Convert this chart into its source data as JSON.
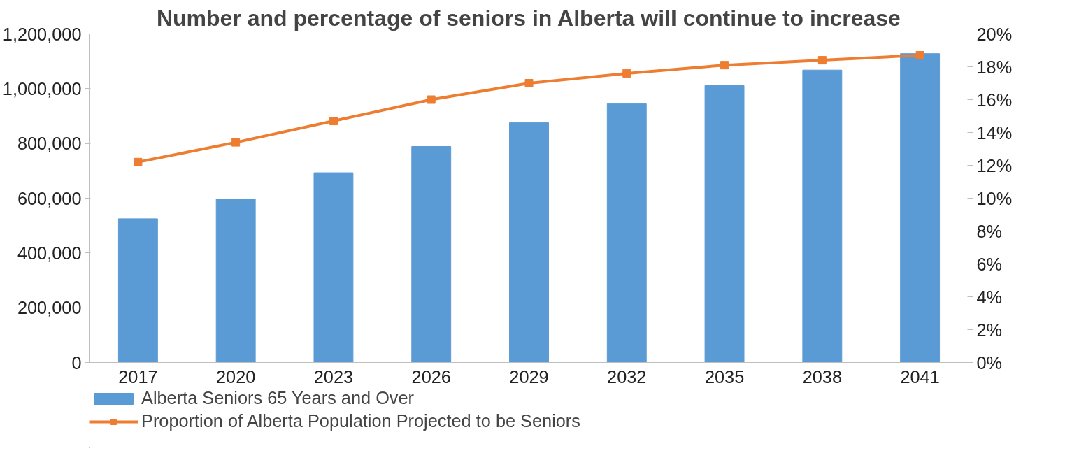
{
  "chart_data": {
    "type": "bar",
    "title": "Number and percentage of seniors in Alberta will continue to increase",
    "categories": [
      "2017",
      "2020",
      "2023",
      "2026",
      "2029",
      "2032",
      "2035",
      "2038",
      "2041"
    ],
    "series": [
      {
        "name": "Alberta Seniors 65 Years and Over",
        "color": "#5b9bd5",
        "values": [
          525000,
          597000,
          693000,
          789000,
          876000,
          945000,
          1011000,
          1068000,
          1128000
        ]
      },
      {
        "name": "Proportion of Alberta Population Projected to be Seniors",
        "type": "line",
        "axis": "y2",
        "color": "#ed7d31",
        "marker": "square",
        "values": [
          12.2,
          13.4,
          14.7,
          16.0,
          17.0,
          17.6,
          18.1,
          18.4,
          18.7
        ]
      }
    ],
    "ylim": [
      0,
      1200000
    ],
    "yticks": [
      {
        "value": 0,
        "label": "0"
      },
      {
        "value": 200000,
        "label": "200,000"
      },
      {
        "value": 400000,
        "label": "400,000"
      },
      {
        "value": 600000,
        "label": "600,000"
      },
      {
        "value": 800000,
        "label": "800,000"
      },
      {
        "value": 1000000,
        "label": "1,000,000"
      },
      {
        "value": 1200000,
        "label": "1,200,000"
      }
    ],
    "y2lim": [
      0,
      20
    ],
    "y2ticks": [
      {
        "value": 0,
        "label": "0%"
      },
      {
        "value": 2,
        "label": "2%"
      },
      {
        "value": 4,
        "label": "4%"
      },
      {
        "value": 6,
        "label": "6%"
      },
      {
        "value": 8,
        "label": "8%"
      },
      {
        "value": 10,
        "label": "10%"
      },
      {
        "value": 12,
        "label": "12%"
      },
      {
        "value": 14,
        "label": "14%"
      },
      {
        "value": 16,
        "label": "16%"
      },
      {
        "value": 18,
        "label": "18%"
      },
      {
        "value": 20,
        "label": "20%"
      }
    ],
    "grid": false,
    "legend": "bottom"
  }
}
